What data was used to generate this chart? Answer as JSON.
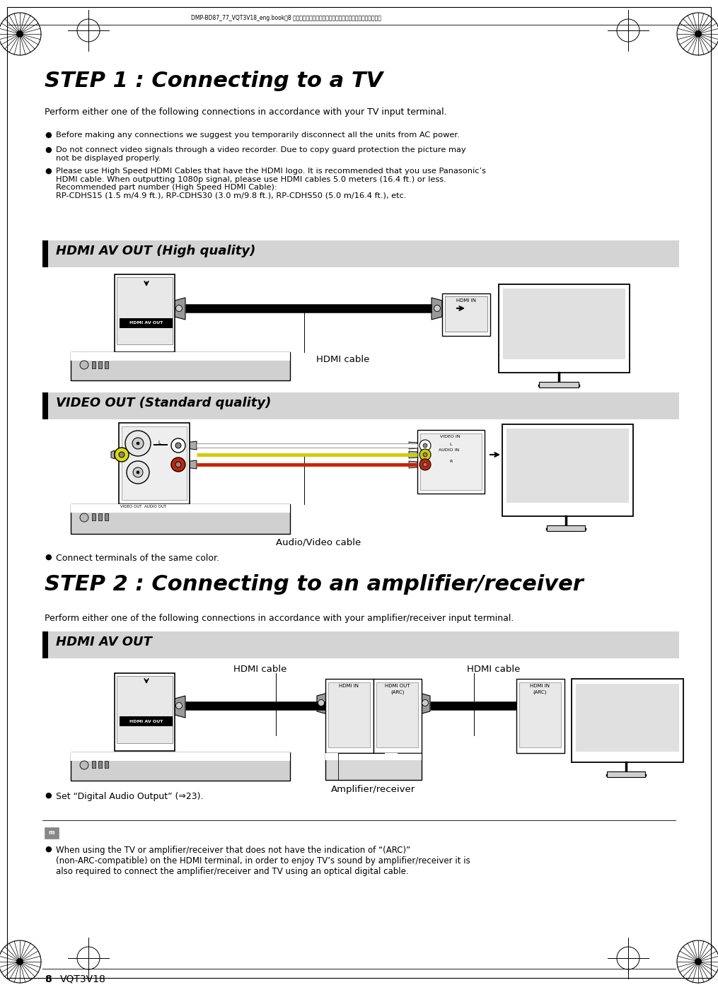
{
  "bg_color": "#ffffff",
  "page_width": 10.15,
  "page_height": 13.93,
  "header_text": "DMP-BD87_77_VQT3V18_eng.book　8 ページ　２０１１年１０月２４日　月曜日　午後２時４５分",
  "step1_title": "STEP 1 : Connecting to a TV",
  "step1_intro": "Perform either one of the following connections in accordance with your TV input terminal.",
  "bullet1": "Before making any connections we suggest you temporarily disconnect all the units from AC power.",
  "bullet2": "Do not connect video signals through a video recorder. Due to copy guard protection the picture may\nnot be displayed properly.",
  "bullet3": "Please use High Speed HDMI Cables that have the HDMI logo. It is recommended that you use Panasonic’s\nHDMI cable. When outputting 1080p signal, please use HDMI cables 5.0 meters (16.4 ft.) or less.\nRecommended part number (High Speed HDMI Cable):\nRP-CDHS15 (1.5 m/4.9 ft.), RP-CDHS30 (3.0 m/9.8 ft.), RP-CDHS50 (5.0 m/16.4 ft.), etc.",
  "section1_title": "HDMI AV OUT (High quality)",
  "hdmi_cable_label": "HDMI cable",
  "section2_title": "VIDEO OUT (Standard quality)",
  "av_cable_label": "Audio/Video cable",
  "bullet_connect": "Connect terminals of the same color.",
  "step2_title": "STEP 2 : Connecting to an amplifier/receiver",
  "step2_intro": "Perform either one of the following connections in accordance with your amplifier/receiver input terminal.",
  "section3_title": "HDMI AV OUT",
  "hdmi_cable_label2": "HDMI cable",
  "hdmi_cable_label3": "HDMI cable",
  "amp_label": "Amplifier/receiver",
  "bullet_set": "Set “Digital Audio Output” (⇒23).",
  "note_text": "When using the TV or amplifier/receiver that does not have the indication of “(ARC)”\n(non-ARC-compatible) on the HDMI terminal, in order to enjoy TV’s sound by amplifier/receiver it is\nalso required to connect the amplifier/receiver and TV using an optical digital cable.",
  "footer_num": "8",
  "footer_code": "VQT3V18",
  "section_bg": "#d4d4d4",
  "section_bar_color": "#000000"
}
